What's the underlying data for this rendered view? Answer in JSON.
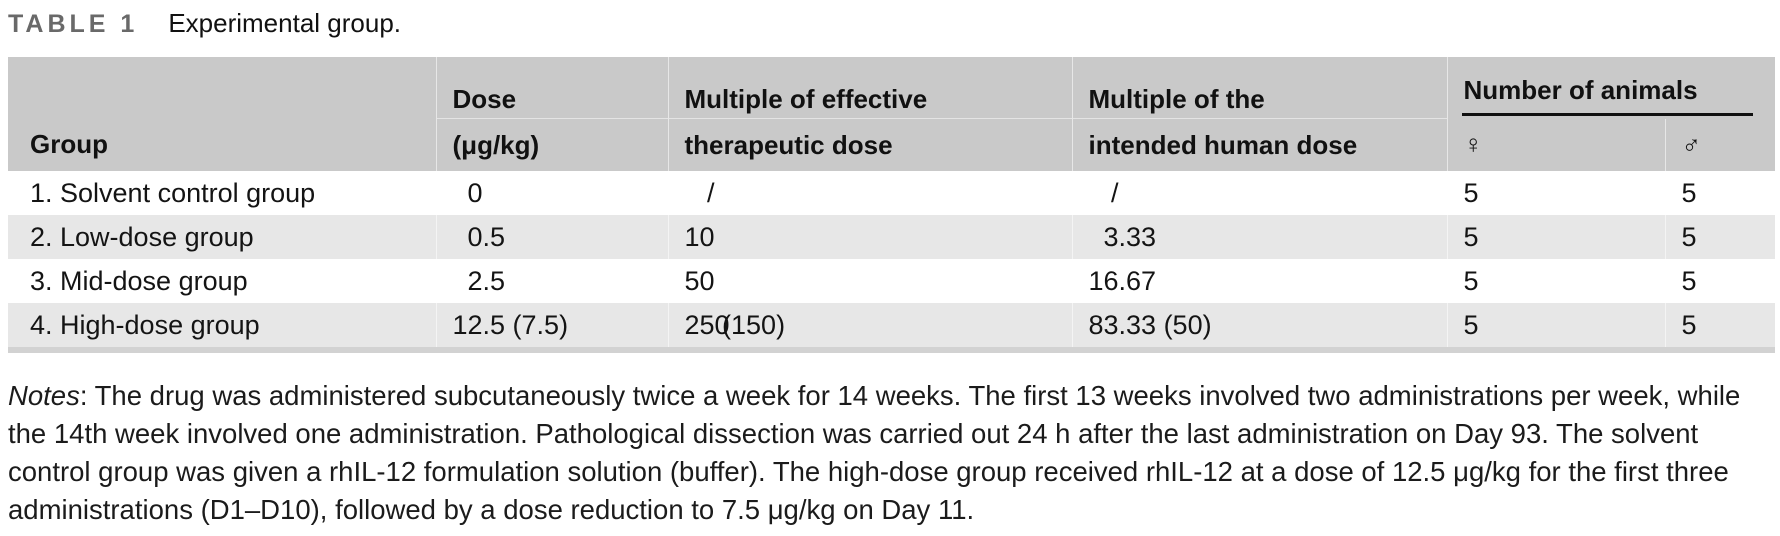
{
  "title": {
    "label": "TABLE 1",
    "caption": "Experimental group."
  },
  "table": {
    "columns": {
      "group": "Group",
      "dose_line1": "Dose",
      "dose_line2": "(μg/kg)",
      "mult_eff_line1": "Multiple of effective",
      "mult_eff_line2": "therapeutic dose",
      "mult_human_line1": "Multiple of the",
      "mult_human_line2": "intended human dose",
      "animals_group": "Number of animals",
      "female_symbol": "♀",
      "male_symbol": "♂"
    },
    "rows": [
      {
        "group": "1. Solvent control group",
        "dose": "0",
        "multiple_effective": "/",
        "multiple_human": "/",
        "females": "5",
        "males": "5"
      },
      {
        "group": "2. Low-dose group",
        "dose": "0.5",
        "multiple_effective": "10",
        "multiple_human": "3.33",
        "females": "5",
        "males": "5"
      },
      {
        "group": "3. Mid-dose group",
        "dose": "2.5",
        "multiple_effective": "50",
        "multiple_human": "16.67",
        "females": "5",
        "males": "5"
      },
      {
        "group": "4. High-dose group",
        "dose": "12.5 (7.5)",
        "multiple_effective": "250 (150)",
        "multiple_human": "83.33 (50)",
        "females": "5",
        "males": "5"
      }
    ]
  },
  "notes": {
    "label": "Notes",
    "body": ": The drug was administered subcutaneously twice a week for 14 weeks. The first 13 weeks involved two administrations per week, while the 14th week involved one administration. Pathological dissection was carried out 24 h after the last administration on Day 93. The solvent control group was given a rhIL-12 formulation solution (buffer). The high-dose group received rhIL-12 at a dose of 12.5 μg/kg for the first three administrations (D1–D10), followed by a dose reduction to 7.5 μg/kg on Day 11."
  },
  "colors": {
    "header_bg": "#c9c9c9",
    "alt_row_bg": "#e7e7e7",
    "bottom_strip": "#d2d2d2",
    "table_label": "#696969"
  }
}
